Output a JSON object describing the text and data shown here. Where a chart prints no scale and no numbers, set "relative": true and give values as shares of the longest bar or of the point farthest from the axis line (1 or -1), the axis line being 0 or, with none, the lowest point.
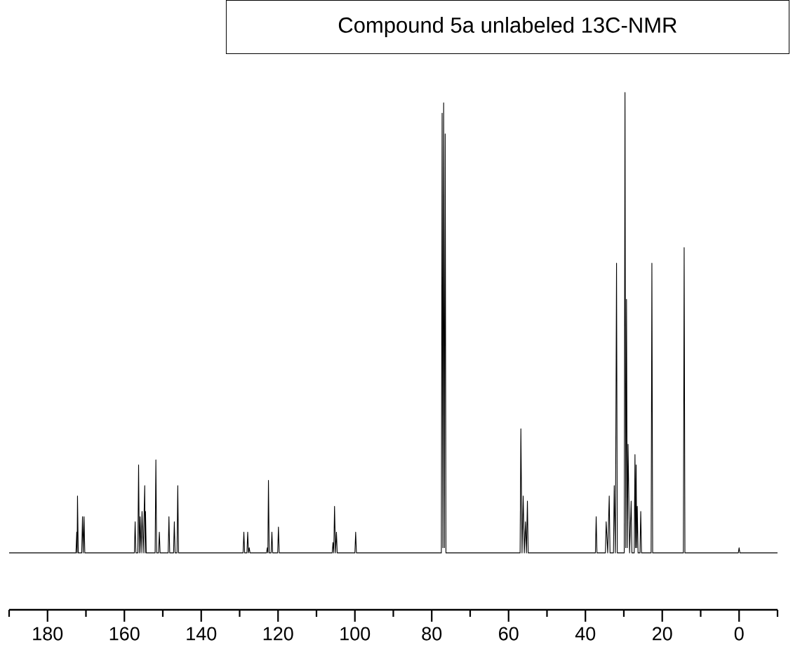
{
  "chart_data": {
    "type": "line",
    "title": "Compound 5a unlabeled 13C-NMR",
    "relative": true,
    "color": "#000000",
    "tick_labels": "x",
    "marker": "none",
    "line_style": "solid",
    "xlim": [
      190,
      -10
    ],
    "xticks": [
      {
        "value": 190,
        "label": null
      },
      180,
      {
        "value": 170,
        "label": null
      },
      160,
      {
        "value": 150,
        "label": null
      },
      140,
      {
        "value": 130,
        "label": null
      },
      120,
      {
        "value": 110,
        "label": null
      },
      100,
      {
        "value": 90,
        "label": null
      },
      80,
      {
        "value": 70,
        "label": null
      },
      60,
      {
        "value": 50,
        "label": null
      },
      40,
      {
        "value": 30,
        "label": null
      },
      20,
      {
        "value": 10,
        "label": null
      },
      0,
      {
        "value": -10,
        "label": null
      }
    ],
    "x": [
      190,
      172.6,
      172.4,
      172.3,
      172.2,
      172.0,
      171.1,
      170.9,
      170.7,
      170.5,
      170.3,
      157.4,
      157.2,
      157.0,
      156.5,
      156.3,
      156.1,
      155.9,
      155.65,
      155.4,
      155.1,
      154.7,
      154.6,
      154.5,
      154.3,
      152.0,
      151.8,
      151.6,
      151.1,
      150.9,
      150.7,
      148.6,
      148.4,
      148.2,
      147.2,
      147.0,
      146.8,
      146.3,
      146.1,
      145.9,
      129.1,
      128.9,
      128.7,
      128.1,
      127.9,
      127.7,
      127.5,
      127.3,
      123.0,
      122.8,
      122.65,
      122.5,
      122.3,
      121.8,
      121.6,
      121.4,
      120.1,
      119.9,
      119.7,
      105.9,
      105.7,
      105.5,
      105.3,
      105.05,
      104.8,
      104.6,
      100.0,
      99.8,
      99.6,
      77.5,
      77.3,
      77.1,
      76.9,
      76.7,
      76.5,
      76.3,
      57.0,
      56.8,
      56.5,
      56.2,
      55.9,
      55.6,
      55.35,
      55.1,
      54.9,
      37.4,
      37.2,
      37.0,
      34.8,
      34.6,
      34.2,
      33.8,
      33.6,
      32.7,
      32.5,
      32.2,
      31.9,
      31.7,
      29.9,
      29.7,
      29.5,
      29.3,
      29.1,
      28.9,
      28.5,
      28.1,
      27.9,
      27.3,
      27.1,
      26.95,
      26.8,
      26.65,
      26.5,
      26.3,
      25.8,
      25.6,
      25.4,
      22.9,
      22.7,
      22.5,
      14.5,
      14.3,
      14.1,
      0.2,
      0.0,
      -0.2,
      -10
    ],
    "values": [
      0.11,
      0.11,
      0.15,
      0.11,
      0.22,
      0.11,
      0.11,
      0.18,
      0.11,
      0.18,
      0.11,
      0.11,
      0.17,
      0.11,
      0.11,
      0.28,
      0.11,
      0.18,
      0.11,
      0.19,
      0.11,
      0.24,
      0.11,
      0.19,
      0.11,
      0.11,
      0.29,
      0.11,
      0.11,
      0.15,
      0.11,
      0.11,
      0.18,
      0.11,
      0.11,
      0.17,
      0.11,
      0.11,
      0.24,
      0.11,
      0.11,
      0.15,
      0.11,
      0.11,
      0.15,
      0.11,
      0.12,
      0.11,
      0.11,
      0.12,
      0.11,
      0.25,
      0.11,
      0.11,
      0.15,
      0.11,
      0.11,
      0.16,
      0.11,
      0.11,
      0.13,
      0.11,
      0.2,
      0.11,
      0.15,
      0.11,
      0.11,
      0.15,
      0.11,
      0.11,
      0.96,
      0.12,
      0.98,
      0.12,
      0.92,
      0.11,
      0.11,
      0.35,
      0.11,
      0.22,
      0.11,
      0.17,
      0.11,
      0.21,
      0.11,
      0.11,
      0.18,
      0.11,
      0.11,
      0.17,
      0.11,
      0.22,
      0.11,
      0.11,
      0.24,
      0.11,
      0.67,
      0.11,
      0.11,
      1.0,
      0.12,
      0.6,
      0.12,
      0.32,
      0.11,
      0.21,
      0.11,
      0.11,
      0.3,
      0.12,
      0.28,
      0.12,
      0.2,
      0.11,
      0.11,
      0.19,
      0.11,
      0.11,
      0.67,
      0.11,
      0.11,
      0.7,
      0.11,
      0.11,
      0.12,
      0.11,
      0.11
    ]
  }
}
